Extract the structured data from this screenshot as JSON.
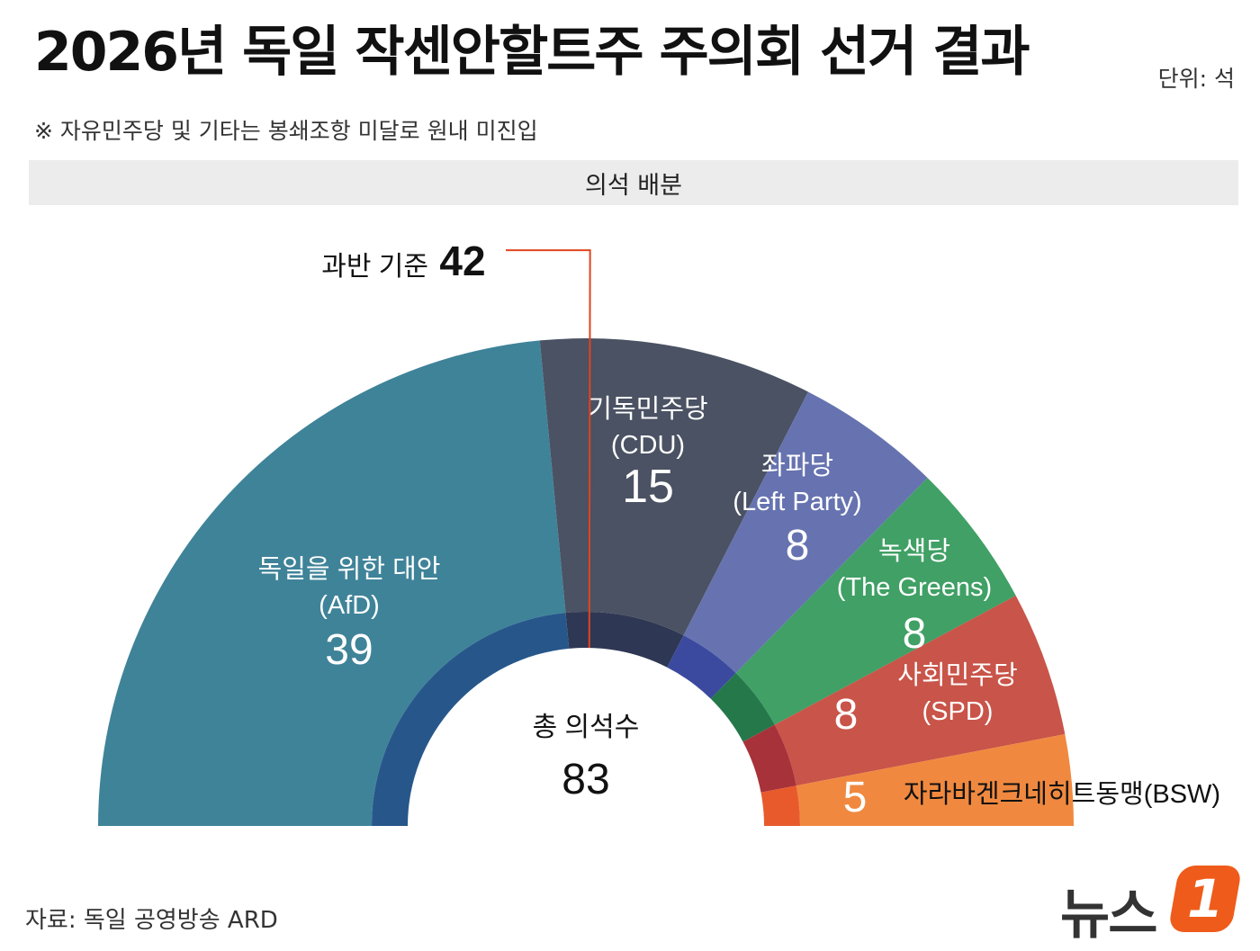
{
  "header": {
    "title": "2026년 독일 작센안할트주 주의회 선거 결과",
    "unit": "단위: 석",
    "note": "※ 자유민주당 및 기타는 봉쇄조항 미달로 원내 미진입",
    "band_label": "의석 배분"
  },
  "source": "자료: 독일 공영방송 ARD",
  "logo": {
    "text": "뉴스",
    "badge": "1"
  },
  "chart_data": {
    "type": "pie",
    "shape": "semicircle-donut",
    "title": "의석 배분",
    "total": {
      "label": "총 의석수",
      "value": 83
    },
    "majority": {
      "label": "과반 기준",
      "value": 42
    },
    "series": [
      {
        "name": "독일을 위한 대안",
        "name_sub": "(AfD)",
        "value": 39,
        "color": "#3f8399",
        "inner_color": "#27578a"
      },
      {
        "name": "기독민주당",
        "name_sub": "(CDU)",
        "value": 15,
        "color": "#4a5263",
        "inner_color": "#2e3753"
      },
      {
        "name": "좌파당",
        "name_sub": "(Left Party)",
        "value": 8,
        "color": "#6673b0",
        "inner_color": "#3b4a9e"
      },
      {
        "name": "녹색당",
        "name_sub": "(The Greens)",
        "value": 8,
        "color": "#40a065",
        "inner_color": "#24784a"
      },
      {
        "name": "사회민주당",
        "name_sub": "(SPD)",
        "value": 8,
        "color": "#c95449",
        "inner_color": "#a8323a"
      },
      {
        "name": "자라바겐크네히트동맹(BSW)",
        "name_sub": "",
        "value": 5,
        "color": "#f0893f",
        "inner_color": "#e85a2c"
      }
    ]
  }
}
